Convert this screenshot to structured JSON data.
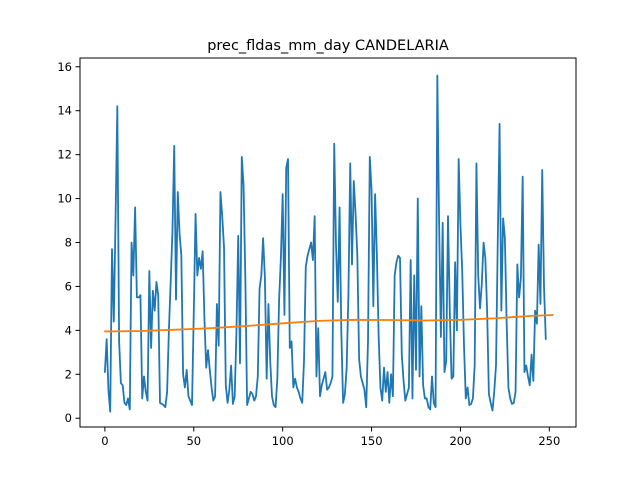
{
  "chart_data": {
    "type": "line",
    "title": "prec_fldas_mm_day CANDELARIA",
    "xlabel": "",
    "ylabel": "",
    "xlim": [
      -14,
      265
    ],
    "ylim": [
      -0.4,
      16.4
    ],
    "x_ticks": [
      0,
      50,
      100,
      150,
      200,
      250
    ],
    "y_ticks": [
      0,
      2,
      4,
      6,
      8,
      10,
      12,
      14,
      16
    ],
    "x_tick_labels": [
      "0",
      "50",
      "100",
      "150",
      "200",
      "250"
    ],
    "y_tick_labels": [
      "0",
      "2",
      "4",
      "6",
      "8",
      "10",
      "12",
      "14",
      "16"
    ],
    "grid": false,
    "legend": "none",
    "series": [
      {
        "color": "#1f77b4",
        "x_start": 0,
        "values": [
          2.1,
          3.6,
          1.3,
          0.3,
          7.7,
          4.4,
          9.1,
          14.2,
          3.5,
          1.6,
          1.5,
          0.7,
          0.6,
          0.9,
          0.4,
          8.0,
          6.5,
          9.6,
          5.5,
          5.5,
          5.6,
          0.9,
          1.9,
          1.2,
          0.8,
          6.7,
          3.2,
          5.8,
          4.9,
          6.2,
          5.6,
          0.7,
          0.65,
          0.6,
          0.5,
          1.2,
          4.0,
          6.2,
          8.5,
          12.4,
          5.4,
          10.3,
          8.4,
          7.4,
          2.0,
          1.4,
          2.2,
          1.0,
          0.8,
          0.6,
          4.8,
          9.3,
          6.5,
          7.3,
          6.8,
          7.6,
          4.5,
          2.3,
          3.1,
          2.2,
          1.4,
          0.8,
          1.0,
          5.2,
          3.3,
          10.3,
          9.2,
          7.8,
          1.5,
          0.7,
          1.3,
          2.4,
          0.65,
          1.0,
          3.9,
          8.3,
          2.5,
          11.9,
          10.6,
          6.4,
          0.6,
          0.9,
          1.2,
          1.1,
          0.8,
          1.0,
          1.9,
          5.9,
          6.5,
          8.2,
          6.4,
          1.8,
          5.2,
          2.6,
          1.0,
          0.6,
          0.5,
          1.8,
          5.4,
          7.3,
          10.2,
          4.7,
          11.4,
          11.8,
          3.2,
          3.5,
          1.4,
          1.8,
          1.4,
          1.2,
          0.9,
          0.7,
          2.6,
          6.9,
          7.4,
          7.7,
          8.0,
          7.2,
          9.2,
          1.9,
          4.1,
          1.0,
          1.5,
          1.8,
          2.1,
          1.3,
          1.4,
          1.6,
          1.9,
          12.5,
          7.9,
          5.3,
          9.6,
          3.9,
          0.7,
          1.1,
          2.3,
          5.7,
          11.6,
          7.0,
          10.8,
          9.3,
          7.4,
          2.7,
          1.9,
          1.6,
          1.3,
          0.5,
          3.5,
          11.9,
          10.4,
          5.1,
          10.2,
          7.4,
          3.7,
          1.4,
          0.8,
          2.3,
          1.2,
          2.1,
          0.7,
          2.0,
          1.0,
          6.5,
          7.1,
          7.4,
          7.3,
          2.9,
          1.7,
          0.8,
          1.1,
          1.4,
          7.2,
          0.9,
          6.5,
          2.2,
          10.0,
          1.9,
          5.1,
          1.5,
          0.9,
          0.9,
          0.5,
          0.4,
          1.9,
          0.7,
          0.5,
          15.6,
          8.9,
          3.7,
          8.9,
          2.1,
          2.6,
          9.2,
          4.9,
          1.8,
          1.9,
          7.1,
          4.0,
          11.8,
          8.8,
          6.7,
          3.3,
          0.9,
          1.4,
          0.6,
          0.65,
          0.9,
          2.4,
          11.6,
          6.5,
          5.0,
          6.1,
          8.0,
          7.3,
          4.9,
          1.1,
          0.7,
          0.35,
          1.2,
          2.4,
          8.1,
          13.4,
          4.9,
          9.1,
          8.2,
          4.3,
          1.4,
          0.9,
          0.65,
          0.7,
          1.2,
          7.0,
          5.5,
          6.4,
          11.0,
          2.1,
          2.4,
          1.9,
          1.5,
          2.9,
          1.7,
          4.9,
          4.3,
          7.9,
          5.2,
          11.3,
          6.0,
          3.6
        ]
      },
      {
        "color": "#ff7f0e",
        "x": [
          0,
          20,
          40,
          60,
          80,
          100,
          120,
          140,
          160,
          180,
          200,
          220,
          240,
          252
        ],
        "values": [
          3.95,
          3.97,
          4.03,
          4.1,
          4.2,
          4.32,
          4.43,
          4.48,
          4.47,
          4.45,
          4.48,
          4.55,
          4.66,
          4.7
        ]
      }
    ]
  }
}
